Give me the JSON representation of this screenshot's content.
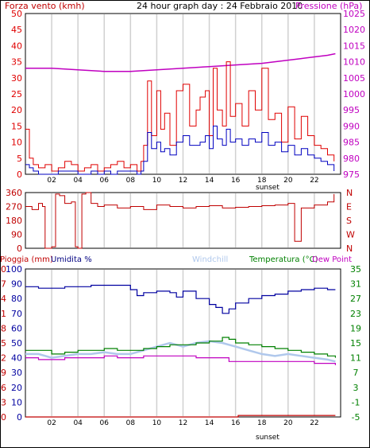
{
  "title": "24 hour graph day : 24 Febbraio 2010",
  "colors": {
    "wind": "#e00000",
    "gust": "#0000c0",
    "pressure": "#c000c0",
    "winddir": "#c00000",
    "humidity": "#0000a0",
    "temperature": "#008000",
    "dewpoint": "#c000c0",
    "windchill": "#b0c8ec",
    "rain": "#c00000",
    "grid": "#d0d0d0"
  },
  "x_ticks": [
    "02",
    "04",
    "06",
    "08",
    "10",
    "12",
    "14",
    "16",
    "18",
    "20",
    "22"
  ],
  "sunset_label": "sunset",
  "chart_data": [
    {
      "type": "line",
      "name": "wind",
      "left_label": "Forza vento (kmh)",
      "right_label": "Pressione (hPa)",
      "left_ticks": [
        "0",
        "5",
        "10",
        "15",
        "20",
        "25",
        "30",
        "35",
        "40",
        "45",
        "50"
      ],
      "right_ticks": [
        "975",
        "980",
        "985",
        "990",
        "995",
        "1000",
        "1005",
        "1010",
        "1015",
        "1020",
        "1025"
      ],
      "ylim": [
        0,
        50
      ],
      "ylim_right": [
        975,
        1025
      ],
      "x_range_hours": [
        0,
        24
      ],
      "series": [
        {
          "key": "wind",
          "x": [
            0,
            0.3,
            0.6,
            1,
            1.5,
            2,
            2.5,
            3,
            3.5,
            4,
            4.5,
            5,
            5.5,
            6,
            6.5,
            7,
            7.5,
            8,
            8.5,
            8.8,
            9,
            9.3,
            9.6,
            10,
            10.3,
            10.6,
            11,
            11.5,
            12,
            12.5,
            13,
            13.3,
            13.7,
            14,
            14.3,
            14.6,
            15,
            15.3,
            15.6,
            16,
            16.5,
            17,
            17.5,
            18,
            18.5,
            19,
            19.5,
            20,
            20.5,
            21,
            21.5,
            22,
            22.5,
            23,
            23.5
          ],
          "values": [
            14,
            5,
            3,
            2,
            3,
            1,
            2,
            4,
            3,
            1,
            2,
            3,
            1,
            2,
            3,
            4,
            2,
            3,
            1,
            4,
            9,
            29,
            12,
            26,
            14,
            19,
            9,
            26,
            28,
            15,
            20,
            24,
            26,
            12,
            33,
            20,
            15,
            35,
            18,
            22,
            15,
            26,
            20,
            33,
            17,
            19,
            10,
            21,
            11,
            18,
            12,
            9,
            8,
            6,
            4
          ]
        },
        {
          "key": "gust",
          "x": [
            0,
            0.3,
            0.6,
            1,
            1.5,
            2,
            2.5,
            3,
            3.5,
            4,
            4.5,
            5,
            5.5,
            6,
            6.5,
            7,
            7.5,
            8,
            8.5,
            8.8,
            9,
            9.3,
            9.6,
            10,
            10.3,
            10.6,
            11,
            11.5,
            12,
            12.5,
            13,
            13.3,
            13.7,
            14,
            14.3,
            14.6,
            15,
            15.3,
            15.6,
            16,
            16.5,
            17,
            17.5,
            18,
            18.5,
            19,
            19.5,
            20,
            20.5,
            21,
            21.5,
            22,
            22.5,
            23,
            23.5
          ],
          "values": [
            3,
            2,
            1,
            0,
            0,
            0,
            1,
            1,
            1,
            0,
            0,
            1,
            0,
            1,
            0,
            1,
            1,
            1,
            0,
            1,
            4,
            13,
            8,
            10,
            7,
            8,
            6,
            10,
            12,
            9,
            9,
            10,
            12,
            8,
            15,
            11,
            9,
            14,
            10,
            11,
            9,
            11,
            10,
            13,
            9,
            10,
            7,
            9,
            6,
            8,
            6,
            5,
            4,
            3,
            1
          ]
        },
        {
          "key": "pressure",
          "axis": "right",
          "x": [
            0,
            2,
            4,
            6,
            8,
            10,
            12,
            14,
            16,
            18,
            19,
            20,
            21,
            22,
            23,
            23.6
          ],
          "values": [
            1008,
            1008,
            1007.5,
            1007,
            1007,
            1007.5,
            1008,
            1008.5,
            1009,
            1009.5,
            1010,
            1010.5,
            1011,
            1011.5,
            1012,
            1012.5
          ]
        }
      ]
    },
    {
      "type": "line",
      "name": "wind-direction",
      "left_ticks": [
        "0",
        "90",
        "180",
        "270",
        "360"
      ],
      "right_ticks": [
        "N",
        "E",
        "S",
        "W",
        "N"
      ],
      "ylim": [
        0,
        360
      ],
      "x_range_hours": [
        0,
        24
      ],
      "series": [
        {
          "key": "winddir",
          "x": [
            0,
            0.5,
            1,
            1.3,
            1.5,
            2,
            2.3,
            2.6,
            3,
            3.5,
            3.8,
            4,
            4.3,
            4.6,
            5,
            5.5,
            6,
            7,
            8,
            9,
            10,
            11,
            12,
            13,
            14,
            15,
            16,
            17,
            18,
            19,
            20,
            20.5,
            21,
            22,
            23,
            23.5
          ],
          "values": [
            270,
            250,
            290,
            270,
            0,
            10,
            350,
            340,
            290,
            300,
            10,
            0,
            350,
            360,
            290,
            270,
            280,
            260,
            270,
            250,
            280,
            270,
            260,
            270,
            275,
            260,
            265,
            270,
            275,
            280,
            290,
            45,
            260,
            280,
            300,
            350
          ]
        }
      ]
    },
    {
      "type": "line",
      "name": "humidity-temperature",
      "labels": [
        "Pioggia (mm)",
        "Umidita %",
        "Windchill",
        "Temperatura (°C)",
        "Dew Point"
      ],
      "left_ticks_humidity": [
        "0",
        "10",
        "20",
        "30",
        "40",
        "50",
        "60",
        "70",
        "80",
        "90",
        "100"
      ],
      "left_ticks_rain": [
        "0",
        "3",
        "6",
        "9",
        "12",
        "15",
        "18",
        "21",
        "24",
        "27",
        "30"
      ],
      "right_ticks": [
        "-5",
        "-1",
        "3",
        "7",
        "11",
        "15",
        "19",
        "23",
        "27",
        "31",
        "35"
      ],
      "ylim": [
        0,
        100
      ],
      "ylim_right": [
        -5,
        35
      ],
      "x_range_hours": [
        0,
        24
      ],
      "series": [
        {
          "key": "humidity",
          "x": [
            0,
            1,
            2,
            3,
            4,
            5,
            6,
            7,
            8,
            8.5,
            9,
            10,
            11,
            11.5,
            12,
            13,
            14,
            14.5,
            15,
            15.5,
            16,
            17,
            18,
            19,
            20,
            21,
            22,
            23,
            23.6
          ],
          "values": [
            88,
            87,
            87,
            88,
            88,
            89,
            89,
            89,
            86,
            82,
            84,
            85,
            84,
            81,
            85,
            80,
            76,
            74,
            70,
            73,
            77,
            80,
            82,
            83,
            85,
            86,
            87,
            86,
            86
          ]
        },
        {
          "key": "temperature",
          "axis": "right",
          "x": [
            0,
            1,
            2,
            3,
            4,
            5,
            6,
            7,
            8,
            9,
            10,
            11,
            12,
            13,
            14,
            15,
            15.5,
            16,
            17,
            18,
            19,
            20,
            21,
            22,
            23,
            23.6
          ],
          "values": [
            13,
            13,
            12,
            12.5,
            13,
            13,
            13.5,
            13,
            13,
            13.5,
            14,
            14.5,
            14.5,
            15,
            15.5,
            16.5,
            16,
            15,
            14.5,
            14,
            13.5,
            13,
            12.5,
            12,
            11.5,
            11
          ]
        },
        {
          "key": "windchill",
          "axis": "right",
          "x": [
            0,
            1,
            2,
            3,
            4,
            5,
            6,
            7,
            8,
            9,
            10,
            11,
            12,
            13,
            14,
            15,
            16,
            17,
            18,
            19,
            20,
            21,
            22,
            23,
            23.6
          ],
          "values": [
            12,
            12,
            11,
            11.5,
            12,
            12,
            12.5,
            12,
            12,
            13,
            14,
            15,
            14,
            15,
            15.5,
            15,
            14,
            13,
            12,
            11.5,
            12,
            11.5,
            11,
            10.5,
            10
          ]
        },
        {
          "key": "dewpoint",
          "axis": "right",
          "x": [
            0,
            1,
            2,
            3,
            4,
            5,
            6,
            7,
            8,
            9,
            10,
            11,
            12,
            13,
            14,
            15,
            15.5,
            16,
            17,
            18,
            19,
            20,
            21,
            22,
            23,
            23.6
          ],
          "values": [
            11,
            10.5,
            10.5,
            11,
            11,
            11,
            11.5,
            11,
            11,
            11.5,
            11.5,
            11.5,
            11.5,
            11,
            11,
            11,
            10,
            10,
            10,
            10,
            10,
            10,
            10,
            9.5,
            9.5,
            9
          ]
        },
        {
          "key": "rain",
          "axis": "rain",
          "x": [
            0,
            14,
            16,
            16.2,
            23.6
          ],
          "values": [
            0,
            0,
            0,
            0.3,
            0.3
          ]
        }
      ]
    }
  ]
}
